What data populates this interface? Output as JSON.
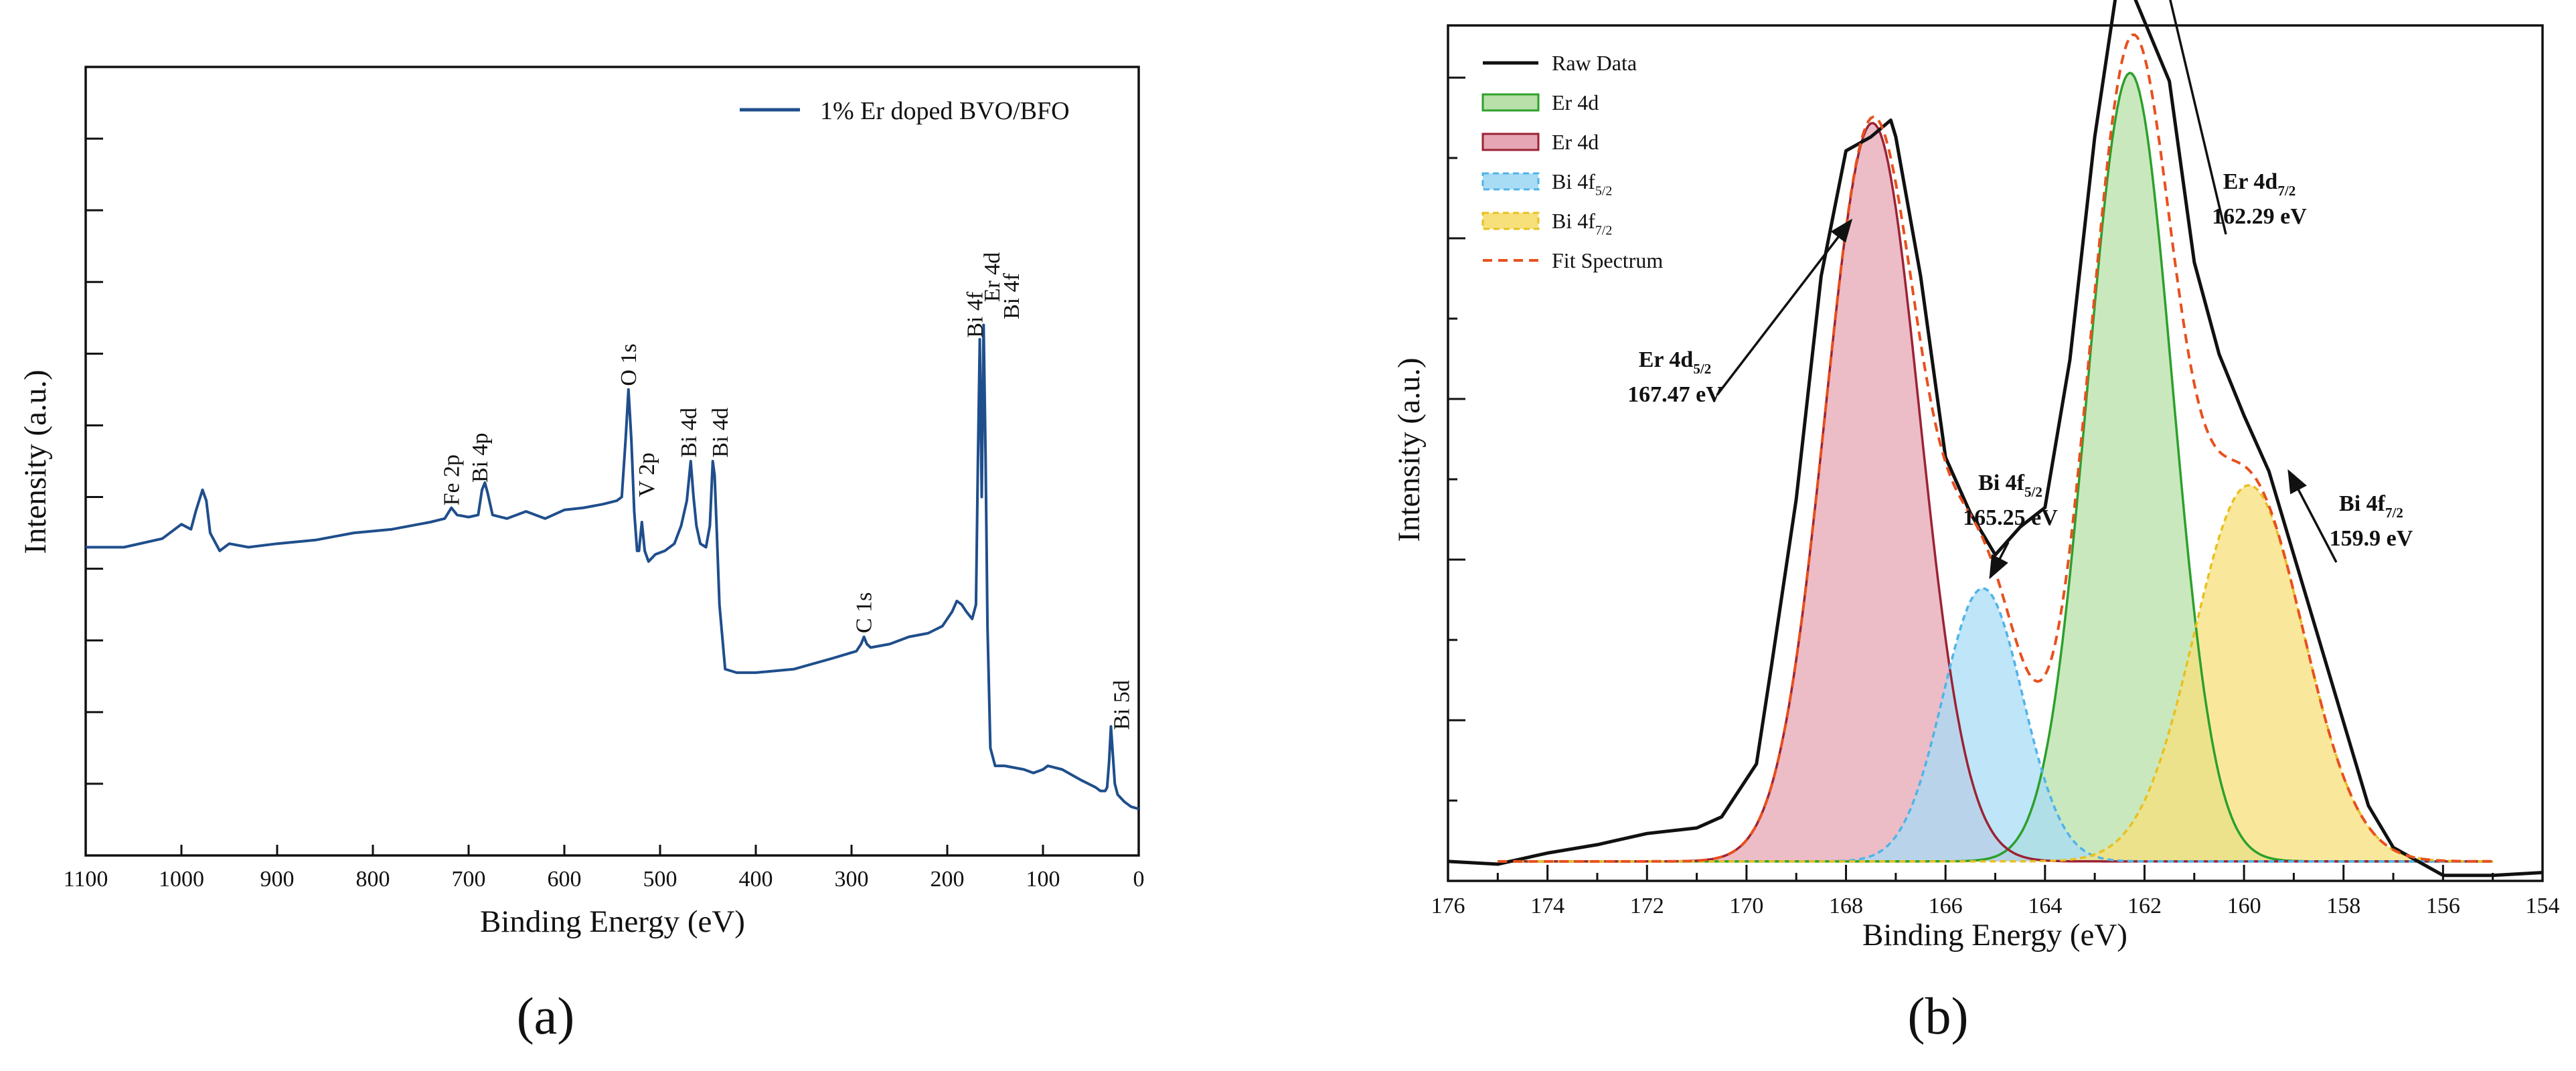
{
  "chart_data": [
    {
      "type": "line",
      "panel_label": "(a)",
      "title": "",
      "xlabel": "Binding Energy (eV)",
      "ylabel": "Intensity (a.u.)",
      "xlim": [
        1100,
        0
      ],
      "ylim": [
        0,
        11
      ],
      "x_reversed": true,
      "y_tick_labels_shown": false,
      "xticks": [
        1100,
        1000,
        900,
        800,
        700,
        600,
        500,
        400,
        300,
        200,
        100,
        0
      ],
      "grid": false,
      "legend_position": "top-right",
      "series": [
        {
          "name": "1% Er doped BVO/BFO",
          "color": "#1f4e8c",
          "x": [
            1100,
            1060,
            1020,
            1000,
            990,
            985,
            978,
            974,
            970,
            960,
            950,
            930,
            900,
            860,
            820,
            780,
            740,
            725,
            718,
            712,
            700,
            690,
            686,
            683,
            680,
            675,
            660,
            640,
            620,
            600,
            580,
            560,
            545,
            540,
            536,
            533,
            530,
            527,
            524,
            522,
            519,
            516,
            512,
            505,
            495,
            485,
            478,
            472,
            468,
            465,
            462,
            458,
            452,
            448,
            445,
            443,
            441,
            438,
            432,
            420,
            400,
            360,
            320,
            295,
            290,
            287,
            284,
            280,
            260,
            240,
            220,
            205,
            195,
            190,
            185,
            180,
            174,
            170,
            168,
            166,
            164,
            162,
            160,
            158,
            155,
            150,
            140,
            120,
            110,
            100,
            95,
            80,
            60,
            45,
            40,
            35,
            33,
            31,
            29,
            27,
            25,
            22,
            15,
            8,
            0
          ],
          "values": [
            4.3,
            4.3,
            4.42,
            4.62,
            4.55,
            4.8,
            5.1,
            4.95,
            4.5,
            4.25,
            4.35,
            4.3,
            4.35,
            4.4,
            4.5,
            4.55,
            4.65,
            4.7,
            4.85,
            4.75,
            4.72,
            4.75,
            5.1,
            5.2,
            5.05,
            4.75,
            4.7,
            4.8,
            4.7,
            4.82,
            4.85,
            4.9,
            4.95,
            5.0,
            5.8,
            6.5,
            5.8,
            4.8,
            4.25,
            4.25,
            4.65,
            4.25,
            4.1,
            4.2,
            4.25,
            4.35,
            4.6,
            4.95,
            5.5,
            5.0,
            4.6,
            4.35,
            4.3,
            4.6,
            5.5,
            5.3,
            4.6,
            3.5,
            2.6,
            2.55,
            2.55,
            2.6,
            2.75,
            2.85,
            2.95,
            3.05,
            2.95,
            2.9,
            2.95,
            3.05,
            3.1,
            3.2,
            3.4,
            3.55,
            3.5,
            3.4,
            3.3,
            3.5,
            5.5,
            7.2,
            5.0,
            7.4,
            5.6,
            3.2,
            1.5,
            1.25,
            1.25,
            1.2,
            1.15,
            1.2,
            1.25,
            1.2,
            1.05,
            0.95,
            0.9,
            0.9,
            0.95,
            1.3,
            1.8,
            1.4,
            1.0,
            0.85,
            0.75,
            0.68,
            0.65
          ]
        }
      ],
      "annotations": [
        {
          "text": "Fe 2p",
          "x": 718,
          "y": 4.88
        },
        {
          "text": "Bi 4p",
          "x": 688,
          "y": 5.2
        },
        {
          "text": "O 1s",
          "x": 533,
          "y": 6.55
        },
        {
          "text": "V 2p",
          "x": 514,
          "y": 5.0
        },
        {
          "text": "Bi 4d",
          "x": 470,
          "y": 5.55
        },
        {
          "text": "Bi 4d",
          "x": 437,
          "y": 5.55
        },
        {
          "text": "C 1s",
          "x": 287,
          "y": 3.1
        },
        {
          "text": "Bi 4f",
          "x": 171,
          "y": 7.22
        },
        {
          "text": "Er 4d",
          "x": 153,
          "y": 7.72
        },
        {
          "text": "Bi 4f",
          "x": 133,
          "y": 7.48
        },
        {
          "text": "Bi 5d",
          "x": 18,
          "y": 1.75
        }
      ]
    },
    {
      "type": "area",
      "panel_label": "(b)",
      "title": "",
      "xlabel": "Binding Energy (eV)",
      "ylabel": "Intensity (a.u.)",
      "xlim": [
        176,
        154
      ],
      "ylim": [
        -0.07,
        3.0
      ],
      "x_reversed": true,
      "y_tick_labels_shown": false,
      "xticks": [
        176,
        174,
        172,
        170,
        168,
        166,
        164,
        162,
        160,
        158,
        156,
        154
      ],
      "grid": false,
      "legend_position": "top-left",
      "series": [
        {
          "name": "Raw Data",
          "kind": "line",
          "color": "#111111",
          "x": [
            176,
            175,
            174,
            173,
            172,
            171,
            170.5,
            169.8,
            169.5,
            169,
            168.5,
            168,
            167.5,
            167.1,
            167,
            166.5,
            166,
            165.5,
            165,
            164.5,
            164,
            163.5,
            163,
            162.5,
            162.2,
            161.5,
            161,
            160.5,
            160,
            159.5,
            159,
            158.5,
            158,
            157.5,
            157,
            156.5,
            156,
            155,
            154
          ],
          "values": [
            0.0,
            -0.01,
            0.03,
            0.06,
            0.1,
            0.12,
            0.16,
            0.35,
            0.7,
            1.3,
            2.1,
            2.55,
            2.6,
            2.66,
            2.6,
            2.1,
            1.45,
            1.25,
            1.1,
            1.2,
            1.27,
            1.8,
            2.6,
            3.2,
            3.1,
            2.8,
            2.15,
            1.82,
            1.6,
            1.4,
            1.1,
            0.8,
            0.5,
            0.2,
            0.05,
            0.0,
            -0.05,
            -0.05,
            -0.04
          ]
        },
        {
          "name": "Er 4d",
          "kind": "gaussian",
          "color": "#2ca02c",
          "fill": "#b8e0a8",
          "center": 162.29,
          "amplitude": 2.83,
          "sigma": 0.85
        },
        {
          "name": "Er 4d",
          "kind": "gaussian",
          "color": "#9b2335",
          "fill": "#e6a6b4",
          "center": 167.47,
          "amplitude": 2.65,
          "sigma": 0.95
        },
        {
          "name": "Bi 4f5/2",
          "kind": "gaussian",
          "color": "#4fb3e8",
          "fill": "#a8dcf5",
          "center": 165.25,
          "amplitude": 0.98,
          "sigma": 0.8
        },
        {
          "name": "Bi 4f7/2",
          "kind": "gaussian",
          "color": "#e8c020",
          "fill": "#f7e07a",
          "center": 159.9,
          "amplitude": 1.35,
          "sigma": 1.1
        },
        {
          "name": "Fit Spectrum",
          "kind": "fit_sum",
          "color": "#e8501e"
        }
      ],
      "legend": [
        {
          "label": "Raw Data",
          "sub": "",
          "style": "line",
          "color": "#111111"
        },
        {
          "label": "Er 4d",
          "sub": "",
          "style": "area",
          "color": "#2ca02c",
          "fill": "#b8e0a8"
        },
        {
          "label": "Er 4d",
          "sub": "",
          "style": "area",
          "color": "#9b2335",
          "fill": "#e6a6b4"
        },
        {
          "label": "Bi 4f",
          "sub": "5/2",
          "style": "area-dashed",
          "color": "#4fb3e8",
          "fill": "#a8dcf5"
        },
        {
          "label": "Bi 4f",
          "sub": "7/2",
          "style": "area-dashed",
          "color": "#e8c020",
          "fill": "#f7e07a"
        },
        {
          "label": "Fit Spectrum",
          "sub": "",
          "style": "dashed",
          "color": "#e8501e"
        }
      ],
      "peak_labels": [
        {
          "name": "Er 4d",
          "sub": "5/2",
          "energy": "167.47 eV",
          "arrow_to": [
            167.9,
            2.3
          ]
        },
        {
          "name": "Bi 4f",
          "sub": "5/2",
          "energy": "165.25 eV",
          "arrow_to": [
            165.1,
            1.02
          ]
        },
        {
          "name": "Er 4d",
          "sub": "7/2",
          "energy": "162.29 eV",
          "arrow_to": [
            161.8,
            3.33
          ]
        },
        {
          "name": "Bi 4f",
          "sub": "7/2",
          "energy": "159.9 eV",
          "arrow_to": [
            159.1,
            1.4
          ]
        }
      ]
    }
  ]
}
